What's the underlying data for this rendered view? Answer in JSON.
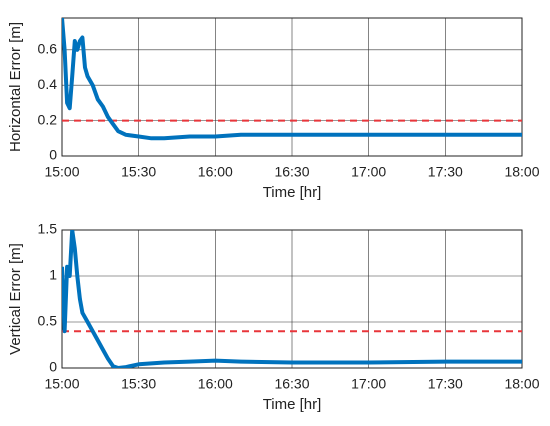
{
  "chart_data": [
    {
      "type": "line",
      "ylabel": "Horizontal Error [m]",
      "xlabel": "Time [hr]",
      "x": [
        900,
        901,
        902,
        903,
        904,
        905,
        906,
        907,
        908,
        909,
        910,
        912,
        914,
        916,
        918,
        920,
        922,
        925,
        930,
        935,
        940,
        950,
        960,
        970,
        990,
        1020,
        1050,
        1080
      ],
      "series": [
        {
          "color": "#0072bd",
          "values": [
            0.78,
            0.6,
            0.3,
            0.27,
            0.45,
            0.65,
            0.6,
            0.65,
            0.67,
            0.5,
            0.45,
            0.4,
            0.32,
            0.28,
            0.22,
            0.18,
            0.14,
            0.12,
            0.11,
            0.1,
            0.1,
            0.11,
            0.11,
            0.12,
            0.12,
            0.12,
            0.12,
            0.12
          ]
        }
      ],
      "reference_line": {
        "value": 0.2,
        "color": "#e8353a"
      },
      "xlim": [
        900,
        1080
      ],
      "xticks": [
        {
          "value": 900,
          "label": "15:00"
        },
        {
          "value": 930,
          "label": "15:30"
        },
        {
          "value": 960,
          "label": "16:00"
        },
        {
          "value": 990,
          "label": "16:30"
        },
        {
          "value": 1020,
          "label": "17:00"
        },
        {
          "value": 1050,
          "label": "17:30"
        },
        {
          "value": 1080,
          "label": "18:00"
        }
      ],
      "ylim": [
        0,
        0.78
      ],
      "yticks": [
        0,
        0.2,
        0.4,
        0.6
      ],
      "grid": true
    },
    {
      "type": "line",
      "ylabel": "Vertical Error [m]",
      "xlabel": "Time [hr]",
      "x": [
        900,
        901,
        902,
        903,
        904,
        905,
        906,
        907,
        908,
        910,
        912,
        914,
        916,
        918,
        920,
        922,
        925,
        930,
        940,
        950,
        960,
        970,
        990,
        1020,
        1050,
        1080
      ],
      "series": [
        {
          "color": "#0072bd",
          "values": [
            1.1,
            0.4,
            1.1,
            1.0,
            1.5,
            1.3,
            1.0,
            0.75,
            0.6,
            0.5,
            0.4,
            0.3,
            0.2,
            0.1,
            0.02,
            0,
            0.01,
            0.04,
            0.06,
            0.07,
            0.08,
            0.07,
            0.06,
            0.06,
            0.07,
            0.07
          ]
        }
      ],
      "reference_line": {
        "value": 0.4,
        "color": "#e8353a"
      },
      "xlim": [
        900,
        1080
      ],
      "xticks": [
        {
          "value": 900,
          "label": "15:00"
        },
        {
          "value": 930,
          "label": "15:30"
        },
        {
          "value": 960,
          "label": "16:00"
        },
        {
          "value": 990,
          "label": "16:30"
        },
        {
          "value": 1020,
          "label": "17:00"
        },
        {
          "value": 1050,
          "label": "17:30"
        },
        {
          "value": 1080,
          "label": "18:00"
        }
      ],
      "ylim": [
        0,
        1.5
      ],
      "yticks": [
        0,
        0.5,
        1,
        1.5
      ],
      "grid": true
    }
  ]
}
